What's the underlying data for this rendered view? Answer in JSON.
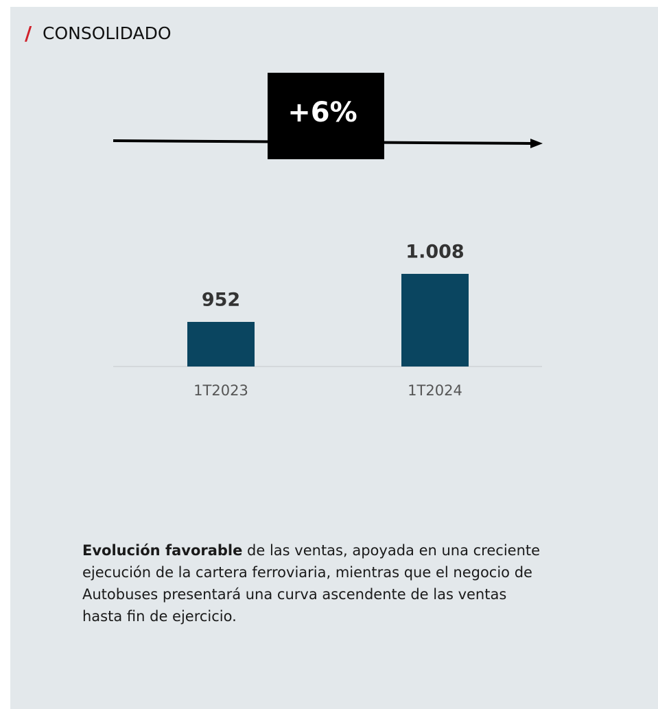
{
  "chart_data": {
    "type": "bar",
    "title": "CONSOLIDADO",
    "annotation": "+6%",
    "categories": [
      "1T2023",
      "1T2024"
    ],
    "values": [
      952,
      1008
    ],
    "value_labels": [
      "952",
      "1.008"
    ],
    "color": "#0a4560",
    "ylim": [
      900,
      1010
    ]
  },
  "text": {
    "bold": "Evolución favorable",
    "rest": " de las ventas, apoyada en una creciente ejecución de la cartera ferroviaria, mientras que el negocio de Autobuses presentará una curva ascendente de las ventas hasta fin de ejercicio."
  }
}
